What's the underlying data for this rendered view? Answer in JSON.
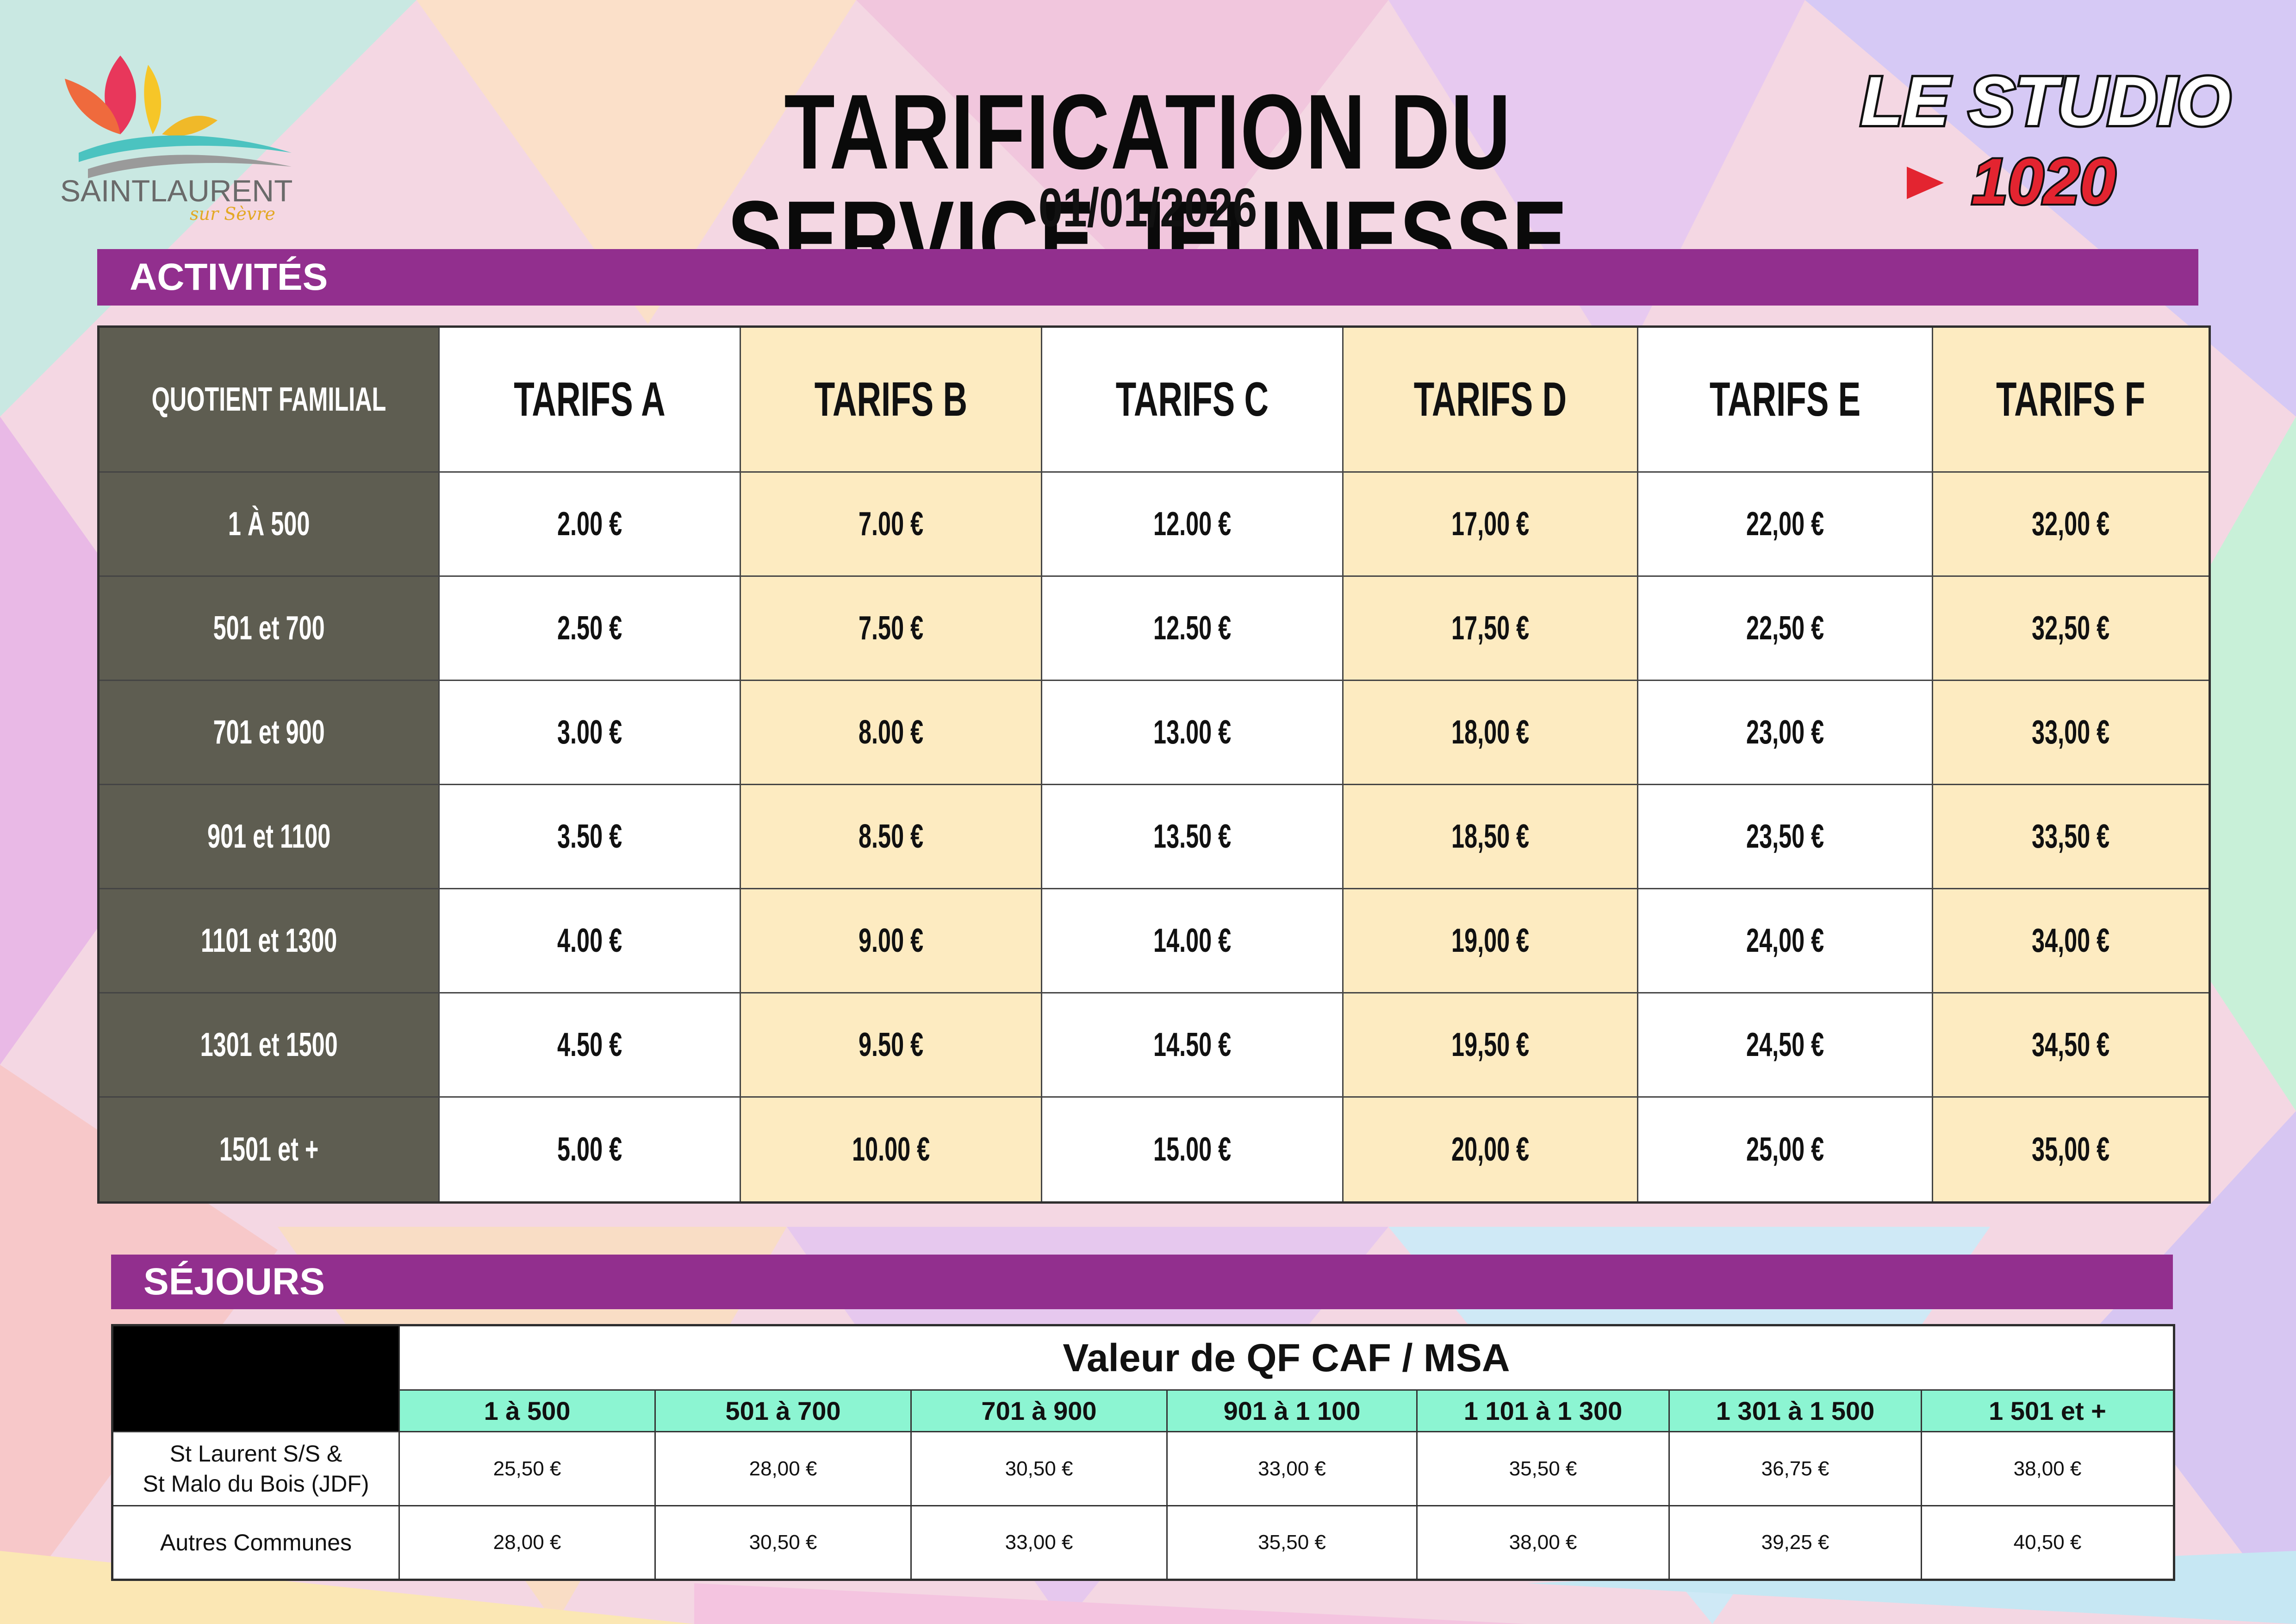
{
  "header": {
    "title": "TARIFICATION DU SERVICE JEUNESSE",
    "date": "01/01/2026"
  },
  "logos": {
    "left": {
      "line1": "SAINTLAURENT",
      "line2": "sur Sèvre",
      "icon": "butterfly-leaf-logo"
    },
    "right": {
      "line1": "LE STUDIO",
      "line2": "1020",
      "icon": "play-triangle-icon"
    }
  },
  "colors": {
    "banner": "#922f8e",
    "quotient_column": "#5e5d51",
    "cream_column": "#fdebc1",
    "range_header": "#8cf5d2"
  },
  "activites": {
    "banner": "ACTIVITÉS",
    "corner_label": "QUOTIENT FAMILIAL",
    "columns": [
      "TARIFS A",
      "TARIFS B",
      "TARIFS C",
      "TARIFS D",
      "TARIFS E",
      "TARIFS F"
    ],
    "rows": [
      {
        "qf": "1 À 500",
        "values": [
          "2.00 €",
          "7.00 €",
          "12.00 €",
          "17,00 €",
          "22,00 €",
          "32,00 €"
        ]
      },
      {
        "qf": "501 et 700",
        "values": [
          "2.50 €",
          "7.50 €",
          "12.50 €",
          "17,50 €",
          "22,50 €",
          "32,50 €"
        ]
      },
      {
        "qf": "701 et 900",
        "values": [
          "3.00 €",
          "8.00 €",
          "13.00 €",
          "18,00 €",
          "23,00 €",
          "33,00 €"
        ]
      },
      {
        "qf": "901 et 1100",
        "values": [
          "3.50 €",
          "8.50 €",
          "13.50 €",
          "18,50 €",
          "23,50 €",
          "33,50 €"
        ]
      },
      {
        "qf": "1101 et 1300",
        "values": [
          "4.00 €",
          "9.00 €",
          "14.00 €",
          "19,00 €",
          "24,00 €",
          "34,00 €"
        ]
      },
      {
        "qf": "1301 et 1500",
        "values": [
          "4.50 €",
          "9.50 €",
          "14.50 €",
          "19,50 €",
          "24,50 €",
          "34,50 €"
        ]
      },
      {
        "qf": "1501 et +",
        "values": [
          "5.00 €",
          "10.00 €",
          "15.00 €",
          "20,00 €",
          "25,00 €",
          "35,00 €"
        ]
      }
    ]
  },
  "sejours": {
    "banner": "SÉJOURS",
    "group_header": "Valeur de QF CAF / MSA",
    "ranges": [
      "1 à 500",
      "501 à 700",
      "701 à 900",
      "901 à 1 100",
      "1 101 à 1 300",
      "1 301 à 1 500",
      "1 501 et +"
    ],
    "rows": [
      {
        "label_line1": "St Laurent S/S &",
        "label_line2": "St Malo du Bois (JDF)",
        "values": [
          "25,50 €",
          "28,00 €",
          "30,50 €",
          "33,00 €",
          "35,50 €",
          "36,75 €",
          "38,00 €"
        ]
      },
      {
        "label_line1": "Autres Communes",
        "label_line2": "",
        "values": [
          "28,00 €",
          "30,50 €",
          "33,00 €",
          "35,50 €",
          "38,00 €",
          "39,25 €",
          "40,50 €"
        ]
      }
    ]
  }
}
